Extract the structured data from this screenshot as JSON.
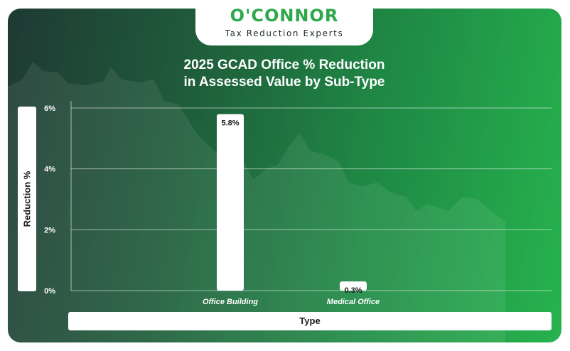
{
  "brand": {
    "name": "O'CONNOR",
    "tagline": "Tax Reduction Experts"
  },
  "chart_data": {
    "type": "bar",
    "title_line1": "2025 GCAD Office % Reduction",
    "title_line2": "in Assessed Value by Sub-Type",
    "xlabel": "Type",
    "ylabel": "Reduction %",
    "categories": [
      "Office Building",
      "Medical Office"
    ],
    "values": [
      5.8,
      0.3
    ],
    "value_labels": [
      "5.8%",
      "0.3%"
    ],
    "ylim": [
      0,
      6
    ],
    "yticks": [
      0,
      2,
      4,
      6
    ],
    "ytick_labels": [
      "0%",
      "2%",
      "4%",
      "6%"
    ],
    "grid": true,
    "bar_color": "#ffffff"
  },
  "colors": {
    "brand_green": "#2ea84a",
    "background_dark": "#1f3a34",
    "background_light": "#27b34e"
  }
}
